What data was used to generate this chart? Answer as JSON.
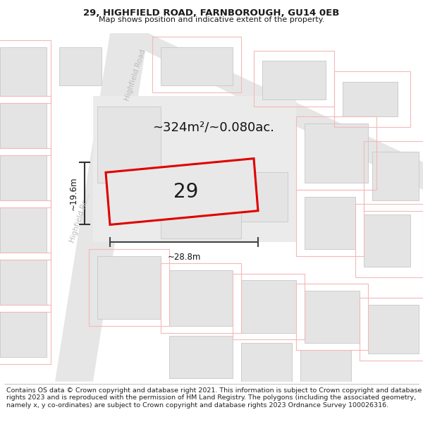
{
  "title": "29, HIGHFIELD ROAD, FARNBOROUGH, GU14 0EB",
  "subtitle": "Map shows position and indicative extent of the property.",
  "footer": "Contains OS data © Crown copyright and database right 2021. This information is subject to Crown copyright and database rights 2023 and is reproduced with the permission of HM Land Registry. The polygons (including the associated geometry, namely x, y co-ordinates) are subject to Crown copyright and database rights 2023 Ordnance Survey 100026316.",
  "bg_color": "#ffffff",
  "pink_line_color": "#f5b8b8",
  "area_text": "~324m²/~0.080ac.",
  "property_label": "29",
  "dim_width": "~28.8m",
  "dim_height": "~19.6m",
  "road_label_left": "Highfield Rc...",
  "road_label_top": "Highfield Road",
  "title_fontsize": 9.5,
  "subtitle_fontsize": 8.0,
  "footer_fontsize": 6.8,
  "area_fontsize": 13,
  "property_label_fontsize": 20,
  "dim_fontsize": 8.5,
  "road_label_fontsize": 7.5
}
